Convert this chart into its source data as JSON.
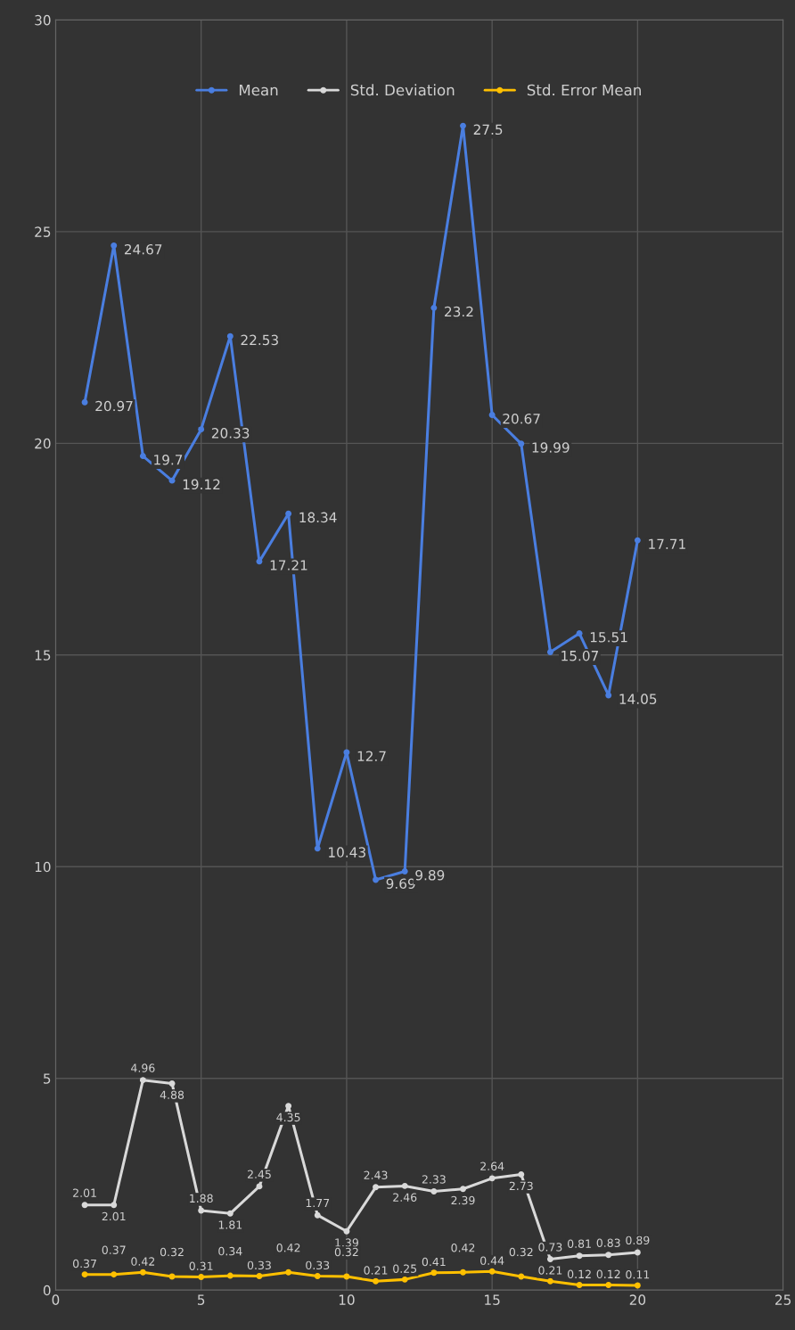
{
  "chart_data": {
    "type": "line",
    "x": [
      1,
      2,
      3,
      4,
      5,
      6,
      7,
      8,
      9,
      10,
      11,
      12,
      13,
      14,
      15,
      16,
      17,
      18,
      19,
      20
    ],
    "series": [
      {
        "name": "Mean",
        "color": "#4a7ee0",
        "values": [
          20.97,
          24.67,
          19.7,
          19.12,
          20.33,
          22.53,
          17.21,
          18.34,
          10.43,
          12.7,
          9.69,
          9.89,
          23.2,
          27.5,
          20.67,
          19.99,
          15.07,
          15.51,
          14.05,
          17.71
        ]
      },
      {
        "name": "Std. Deviation",
        "color": "#d9d9d9",
        "values": [
          2.01,
          2.01,
          4.96,
          4.88,
          1.88,
          1.81,
          2.45,
          4.35,
          1.77,
          1.39,
          2.43,
          2.46,
          2.33,
          2.39,
          2.64,
          2.73,
          0.73,
          0.81,
          0.83,
          0.89
        ]
      },
      {
        "name": "Std. Error Mean",
        "color": "#ffc000",
        "values": [
          0.37,
          0.37,
          0.42,
          0.32,
          0.31,
          0.34,
          0.33,
          0.42,
          0.33,
          0.32,
          0.21,
          0.25,
          0.41,
          0.42,
          0.44,
          0.32,
          0.21,
          0.12,
          0.12,
          0.11
        ]
      }
    ],
    "xlim": [
      0,
      25
    ],
    "xticks": [
      0,
      5,
      10,
      15,
      20,
      25
    ],
    "ylim": [
      0,
      30
    ],
    "yticks": [
      0,
      5,
      10,
      15,
      20,
      25,
      30
    ],
    "grid": true,
    "legend": "top",
    "marker": "circle",
    "line_style": "solid",
    "data_labels": true
  }
}
